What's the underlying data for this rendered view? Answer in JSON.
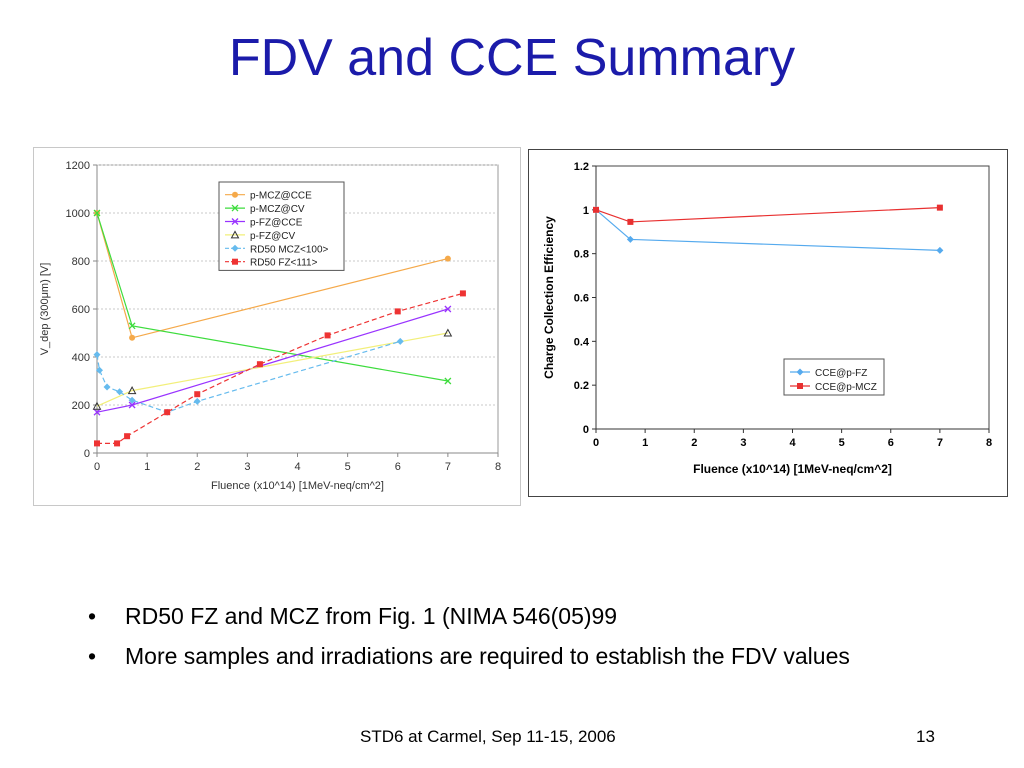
{
  "slide": {
    "title": "FDV and CCE Summary",
    "bullets": [
      "RD50 FZ and MCZ from Fig. 1 (NIMA 546(05)99",
      "More samples and irradiations are required to establish the FDV values"
    ],
    "bullet_symbol": "•",
    "footer": "STD6 at Carmel, Sep 11-15, 2006",
    "page_number": "13"
  },
  "chart_data": [
    {
      "type": "line",
      "title": "",
      "xlabel": "Fluence (x10^14) [1MeV-neq/cm^2]",
      "ylabel": "V_dep (300μm) [V]",
      "xlim": [
        0,
        8
      ],
      "ylim": [
        0,
        1200
      ],
      "xticks": [
        "0",
        "1",
        "2",
        "3",
        "4",
        "5",
        "6",
        "7",
        "8"
      ],
      "yticks": [
        "0",
        "200",
        "400",
        "600",
        "800",
        "1000",
        "1200"
      ],
      "grid": "horizontal dashed",
      "legend_position": "top-right",
      "series": [
        {
          "name": "p-MCZ@CCE",
          "color": "#f5a94a",
          "marker": "circle",
          "dash": "solid",
          "x": [
            0,
            0.7,
            7
          ],
          "y": [
            1000,
            480,
            810
          ]
        },
        {
          "name": "p-MCZ@CV",
          "color": "#3ddc3d",
          "marker": "x",
          "dash": "solid",
          "x": [
            0,
            0.7,
            7
          ],
          "y": [
            1000,
            530,
            300
          ]
        },
        {
          "name": "p-FZ@CCE",
          "color": "#9933ff",
          "marker": "x",
          "dash": "solid",
          "x": [
            0,
            0.7,
            7
          ],
          "y": [
            170,
            200,
            600
          ]
        },
        {
          "name": "p-FZ@CV",
          "color": "#f2ef7a",
          "marker": "triangle",
          "dash": "solid",
          "x": [
            0,
            0.7,
            7
          ],
          "y": [
            195,
            260,
            500
          ]
        },
        {
          "name": "RD50 MCZ<100>",
          "color": "#66bbee",
          "marker": "diamond",
          "dash": "dashed",
          "x": [
            0,
            0.05,
            0.2,
            0.45,
            0.7,
            1.4,
            2.0,
            6.05
          ],
          "y": [
            410,
            345,
            275,
            255,
            220,
            170,
            215,
            465
          ]
        },
        {
          "name": "RD50 FZ<111>",
          "color": "#ee3333",
          "marker": "square",
          "dash": "dashed",
          "x": [
            0,
            0.4,
            0.6,
            1.4,
            2.0,
            3.25,
            4.6,
            6.0,
            7.3
          ],
          "y": [
            40,
            40,
            70,
            170,
            245,
            370,
            490,
            590,
            665
          ]
        }
      ]
    },
    {
      "type": "line",
      "title": "",
      "xlabel": "Fluence (x10^14) [1MeV-neq/cm^2]",
      "ylabel": "Charge Collection Efficiency",
      "xlim": [
        0,
        8
      ],
      "ylim": [
        0,
        1.2
      ],
      "xticks": [
        "0",
        "1",
        "2",
        "3",
        "4",
        "5",
        "6",
        "7",
        "8"
      ],
      "yticks": [
        "0",
        "0.2",
        "0.4",
        "0.6",
        "0.8",
        "1",
        "1.2"
      ],
      "grid": "none",
      "legend_position": "bottom-right",
      "series": [
        {
          "name": "CCE@p-FZ",
          "color": "#55aaee",
          "marker": "diamond",
          "x": [
            0,
            0.7,
            7
          ],
          "y": [
            1.0,
            0.865,
            0.815
          ]
        },
        {
          "name": "CCE@p-MCZ",
          "color": "#e83030",
          "marker": "square",
          "x": [
            0,
            0.7,
            7
          ],
          "y": [
            1.0,
            0.945,
            1.01
          ]
        }
      ]
    }
  ]
}
